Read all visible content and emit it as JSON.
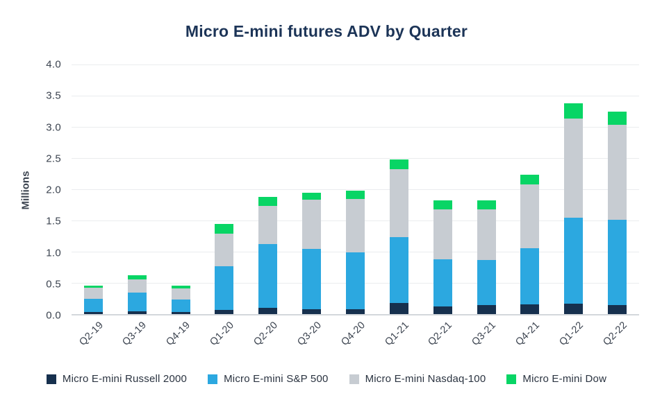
{
  "chart_data": {
    "type": "bar",
    "stacked": true,
    "title": "Micro E-mini futures ADV by Quarter",
    "xlabel": "",
    "ylabel": "Millions",
    "ylim": [
      0,
      4.0
    ],
    "ytick_labels": [
      "4.0",
      "3.5",
      "3.0",
      "2.5",
      "2.0",
      "1.5",
      "1.0",
      "0.5",
      "0.0"
    ],
    "grid": true,
    "legend_position": "bottom",
    "categories": [
      "Q2-19",
      "Q3-19",
      "Q4-19",
      "Q1-20",
      "Q2-20",
      "Q3-20",
      "Q4-20",
      "Q1-21",
      "Q2-21",
      "Q3-21",
      "Q4-21",
      "Q1-22",
      "Q2-22"
    ],
    "series": [
      {
        "name": "Micro E-mini Russell 2000",
        "color": "#16304E",
        "values": [
          0.03,
          0.04,
          0.03,
          0.07,
          0.1,
          0.08,
          0.08,
          0.18,
          0.12,
          0.15,
          0.16,
          0.17,
          0.15
        ]
      },
      {
        "name": "Micro E-mini S&P 500",
        "color": "#2CA8E0",
        "values": [
          0.22,
          0.3,
          0.2,
          0.7,
          1.02,
          0.96,
          0.91,
          1.05,
          0.76,
          0.72,
          0.9,
          1.37,
          1.36
        ]
      },
      {
        "name": "Micro E-mini Nasdaq-100",
        "color": "#C7CCD2",
        "values": [
          0.17,
          0.22,
          0.18,
          0.52,
          0.61,
          0.79,
          0.86,
          1.09,
          0.8,
          0.81,
          1.02,
          1.59,
          1.52
        ]
      },
      {
        "name": "Micro E-mini Dow",
        "color": "#08D565",
        "values": [
          0.04,
          0.06,
          0.05,
          0.15,
          0.15,
          0.11,
          0.13,
          0.16,
          0.14,
          0.14,
          0.15,
          0.25,
          0.22
        ]
      }
    ],
    "totals": [
      0.46,
      0.62,
      0.46,
      1.44,
      1.88,
      1.94,
      1.98,
      2.48,
      1.82,
      1.82,
      2.23,
      3.38,
      3.25
    ]
  },
  "colors": {
    "title": "#1C3457",
    "axis_text": "#3B434F",
    "legend_text": "#2A3340",
    "gridline": "#EAECEE",
    "axis_line": "#D3D7DB",
    "background": "#FFFFFF"
  }
}
